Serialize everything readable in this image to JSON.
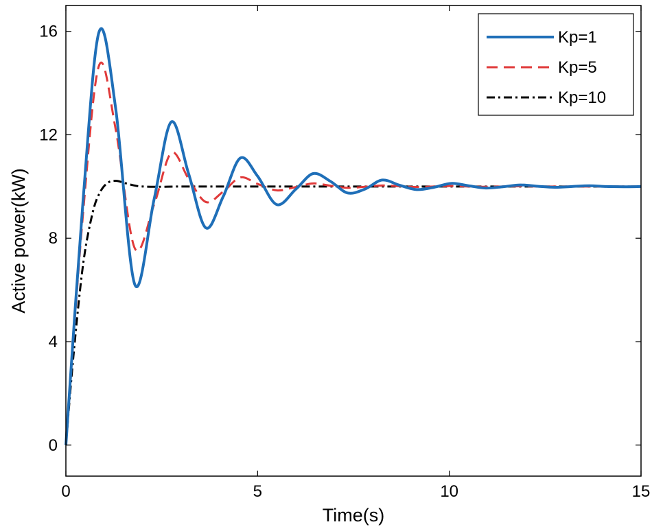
{
  "chart_data": {
    "type": "line",
    "title": "",
    "xlabel": "Time(s)",
    "ylabel": "Active power(kW)",
    "xlim": [
      0,
      15
    ],
    "ylim": [
      -1.2,
      17
    ],
    "xticks": [
      0,
      5,
      10,
      15
    ],
    "yticks": [
      0,
      4,
      8,
      12,
      16
    ],
    "xtick_labels": [
      "0",
      "5",
      "10",
      "15"
    ],
    "ytick_labels": [
      "0",
      "4",
      "8",
      "12",
      "16"
    ],
    "grid": false,
    "legend_position": "top-right",
    "series": [
      {
        "name": "Kp=1",
        "color": "#1f6fb8",
        "dash": "solid",
        "x": [
          0,
          0.45,
          0.87,
          1.3,
          1.8,
          2.3,
          2.75,
          3.2,
          3.65,
          4.1,
          4.55,
          5.0,
          5.5,
          6.0,
          6.45,
          6.9,
          7.35,
          7.8,
          8.25,
          8.7,
          9.15,
          9.6,
          10.05,
          10.5,
          10.95,
          11.4,
          11.85,
          12.3,
          12.75,
          13.2,
          13.65,
          14.1,
          14.55,
          15.0
        ],
        "y": [
          0,
          9.5,
          16.0,
          13.0,
          6.2,
          9.5,
          12.5,
          10.5,
          8.4,
          9.6,
          11.1,
          10.4,
          9.3,
          9.9,
          10.5,
          10.2,
          9.75,
          9.9,
          10.25,
          10.05,
          9.88,
          9.97,
          10.12,
          10.03,
          9.94,
          9.99,
          10.06,
          10.01,
          9.97,
          10.0,
          10.03,
          10.0,
          9.99,
          10.0
        ]
      },
      {
        "name": "Kp=5",
        "color": "#e03a3a",
        "dash": "dashed",
        "x": [
          0,
          0.45,
          0.87,
          1.3,
          1.8,
          2.3,
          2.75,
          3.2,
          3.65,
          4.1,
          4.55,
          5.0,
          5.5,
          6.0,
          6.45,
          6.9,
          7.35,
          7.8,
          8.25,
          8.7,
          9.15,
          9.6,
          10.05,
          10.5,
          10.95,
          11.4,
          11.85,
          12.3,
          12.75,
          13.2,
          13.65,
          14.1,
          14.55,
          15.0
        ],
        "y": [
          0,
          9.0,
          14.7,
          12.2,
          7.6,
          9.3,
          11.3,
          10.3,
          9.4,
          9.8,
          10.35,
          10.1,
          9.85,
          9.98,
          10.12,
          10.03,
          9.95,
          9.99,
          10.04,
          10.01,
          9.98,
          10.0,
          10.02,
          10.0,
          9.99,
          10.0,
          10.01,
          10.0,
          10.0,
          10.0,
          10.0,
          10.0,
          10.0,
          10.0
        ]
      },
      {
        "name": "Kp=10",
        "color": "#000000",
        "dash": "dashdot",
        "x": [
          0,
          0.2,
          0.45,
          0.7,
          0.9,
          1.1,
          1.3,
          1.5,
          1.75,
          2.0,
          2.5,
          3.0,
          4.0,
          5.0,
          6.0,
          7.0,
          8.0,
          9.0,
          10.0,
          11.0,
          12.0,
          13.0,
          14.0,
          15.0
        ],
        "y": [
          0,
          3.5,
          7.0,
          9.0,
          9.8,
          10.15,
          10.22,
          10.15,
          10.05,
          10.0,
          9.99,
          10.0,
          10.0,
          10.0,
          10.0,
          10.0,
          10.0,
          10.0,
          10.0,
          10.0,
          10.0,
          10.0,
          10.0,
          10.0
        ]
      }
    ]
  }
}
